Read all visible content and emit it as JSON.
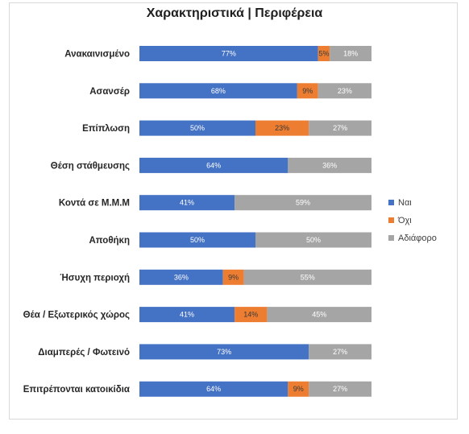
{
  "chart_data": {
    "type": "bar",
    "orientation": "horizontal",
    "stacked": true,
    "percent_stacked": true,
    "title": "Χαρακτηριστικά | Περιφέρεια",
    "categories": [
      "Ανακαινισμένο",
      "Ασανσέρ",
      "Επίπλωση",
      "Θέση στάθμευσης",
      "Κοντά σε Μ.Μ.Μ",
      "Αποθήκη",
      "Ήσυχη περιοχή",
      "Θέα / Εξωτερικός χώρος",
      "Διαμπερές / Φωτεινό",
      "Επιτρέπονται κατοικίδια"
    ],
    "series": [
      {
        "name": "Ναι",
        "color": "#4472c4",
        "values": [
          77,
          68,
          50,
          64,
          41,
          50,
          36,
          41,
          73,
          64
        ]
      },
      {
        "name": "Όχι",
        "color": "#ed7d31",
        "values": [
          5,
          9,
          23,
          0,
          0,
          0,
          9,
          14,
          0,
          9
        ]
      },
      {
        "name": "Αδιάφορο",
        "color": "#a5a5a5",
        "values": [
          18,
          23,
          27,
          36,
          59,
          50,
          55,
          45,
          27,
          27
        ]
      }
    ],
    "value_suffix": "%",
    "legend": "right",
    "grid": false
  }
}
